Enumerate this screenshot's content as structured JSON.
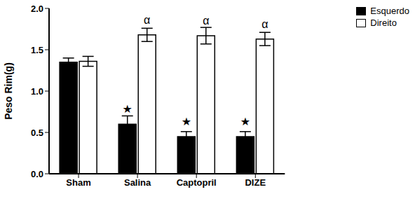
{
  "chart_data": {
    "type": "bar",
    "y_label": "Peso Rim(g)",
    "categories": [
      "Sham",
      "Salina",
      "Captopril",
      "DIZE"
    ],
    "series": [
      {
        "name": "Esquerdo",
        "color": "#000000",
        "values": [
          1.35,
          0.6,
          0.45,
          0.45
        ],
        "errors": [
          0.05,
          0.1,
          0.06,
          0.06
        ]
      },
      {
        "name": "Direito",
        "color": "#ffffff",
        "values": [
          1.36,
          1.68,
          1.67,
          1.63
        ],
        "errors": [
          0.06,
          0.08,
          0.1,
          0.08
        ]
      }
    ],
    "ylim": [
      0,
      2
    ],
    "yticks": [
      {
        "value": 0,
        "label": "0.0"
      },
      {
        "value": 0.5,
        "label": "0.5"
      },
      {
        "value": 1,
        "label": "1.0"
      },
      {
        "value": 1.5,
        "label": "1.5"
      },
      {
        "value": 2,
        "label": "2.0"
      }
    ],
    "legend": "upper right",
    "annotations": [
      {
        "category": "Salina",
        "series": "Esquerdo",
        "text": "★"
      },
      {
        "category": "Captopril",
        "series": "Esquerdo",
        "text": "★"
      },
      {
        "category": "DIZE",
        "series": "Esquerdo",
        "text": "★"
      },
      {
        "category": "Salina",
        "series": "Direito",
        "text": "α"
      },
      {
        "category": "Captopril",
        "series": "Direito",
        "text": "α"
      },
      {
        "category": "DIZE",
        "series": "Direito",
        "text": "α"
      }
    ]
  }
}
